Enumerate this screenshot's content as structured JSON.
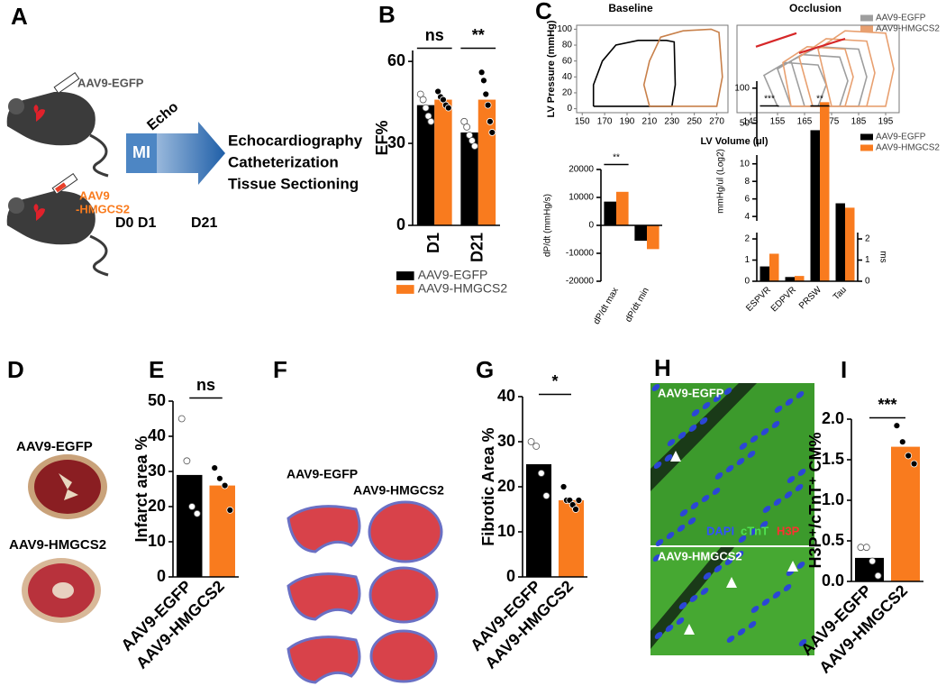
{
  "panel_labels": [
    "A",
    "B",
    "C",
    "D",
    "E",
    "F",
    "G",
    "H",
    "I"
  ],
  "schematic": {
    "mouse_1": "AAV9-EGFP",
    "mouse_2": [
      "AAV9",
      "-HMGCS2"
    ],
    "mi": "MI",
    "echo": "Echo",
    "days_start": "D0 D1",
    "day_end": "D21",
    "procedures": [
      "Echocardiography",
      "Catheterization",
      "Tissue Sectioning"
    ]
  },
  "images": {
    "D": [
      "AAV9-EGFP",
      "AAV9-HMGCS2"
    ],
    "F": [
      "AAV9-EGFP",
      "AAV9-HMGCS2"
    ],
    "H": {
      "top": "AAV9-EGFP",
      "bottom": "AAV9-HMGCS2",
      "stains": [
        "DAPI",
        "cTnT",
        "H3P"
      ]
    }
  },
  "chart_data": [
    {
      "type": "bar",
      "ylabel": "EF%",
      "categories": [
        "D1",
        "D21"
      ],
      "series": [
        {
          "name": "AAV9-EGFP",
          "color": "#000000",
          "values": [
            44,
            34
          ],
          "points": [
            [
              48,
              46,
              43,
              40,
              38
            ],
            [
              38,
              36,
              33,
              31,
              29
            ]
          ]
        },
        {
          "name": "AAV9-HMGCS2",
          "color": "#f97b1e",
          "values": [
            46,
            46
          ],
          "points": [
            [
              49,
              47,
              46,
              44,
              43
            ],
            [
              56,
              53,
              48,
              44,
              38,
              34
            ]
          ]
        }
      ],
      "ylim": [
        0,
        64
      ],
      "yticks": [
        0,
        30,
        60
      ],
      "annotations": [
        "ns",
        "**"
      ],
      "legend": "bottom"
    },
    {
      "type": "line",
      "title": "Baseline",
      "ylabel": "LV Pressure (mmHg)",
      "xlabel": "LV Volume (µl)",
      "series": [
        {
          "name": "AAV9-EGFP",
          "color": "#000000",
          "x": [
            160,
            230,
            233,
            232,
            225,
            200,
            180,
            168,
            160,
            160
          ],
          "y": [
            3,
            3,
            30,
            84,
            86,
            86,
            80,
            60,
            30,
            3
          ]
        },
        {
          "name": "AAV9-HMGCS2",
          "color": "#c8804a",
          "x": [
            210,
            270,
            275,
            272,
            265,
            240,
            220,
            210,
            205,
            210
          ],
          "y": [
            3,
            3,
            40,
            96,
            100,
            98,
            90,
            60,
            30,
            3
          ]
        }
      ],
      "xlim": [
        145,
        280
      ],
      "xticks": [
        150,
        170,
        190,
        210,
        230,
        250,
        270
      ],
      "ylim": [
        -5,
        105
      ],
      "yticks": [
        0,
        20,
        40,
        60,
        80,
        100
      ]
    },
    {
      "type": "line",
      "title": "Occlusion",
      "series": [
        {
          "name": "AAV9-EGFP",
          "color": "#9e9e9e",
          "x": [
            165,
            185,
            188,
            185,
            170,
            160,
            165,
            null,
            160,
            178,
            181,
            178,
            164,
            155,
            160,
            null,
            155,
            170,
            173,
            170,
            158,
            150,
            155
          ],
          "y": [
            3,
            3,
            40,
            75,
            78,
            60,
            3,
            null,
            3,
            3,
            35,
            65,
            68,
            50,
            3,
            null,
            3,
            3,
            30,
            55,
            58,
            42,
            3
          ]
        },
        {
          "name": "AAV9-HMGCS2",
          "color": "#e8a070",
          "x": [
            175,
            195,
            198,
            195,
            180,
            170,
            175,
            null,
            168,
            188,
            191,
            188,
            173,
            163,
            168,
            null,
            160,
            180,
            183,
            180,
            166,
            157,
            160
          ],
          "y": [
            3,
            3,
            50,
            95,
            98,
            75,
            3,
            null,
            3,
            3,
            45,
            85,
            88,
            65,
            3,
            null,
            3,
            3,
            40,
            75,
            78,
            58,
            3
          ]
        }
      ],
      "lines": [
        {
          "color": "#d62728",
          "x": [
            147,
            162
          ],
          "y": [
            78,
            95
          ]
        },
        {
          "color": "#d62728",
          "x": [
            163,
            180
          ],
          "y": [
            70,
            88
          ]
        }
      ],
      "xlim": [
        140,
        200
      ],
      "xticks": [
        145,
        155,
        165,
        175,
        185,
        195
      ],
      "ylim": [
        -5,
        105
      ],
      "legend": "upper right"
    },
    {
      "type": "bar",
      "ylabel": "dP/dt (mmHg/s)",
      "categories": [
        "dP/dt max",
        "dP/dt min"
      ],
      "series": [
        {
          "name": "AAV9-EGFP",
          "color": "#000000",
          "values": [
            8500,
            -5500
          ]
        },
        {
          "name": "AAV9-HMGCS2",
          "color": "#f97b1e",
          "values": [
            12000,
            -8500
          ]
        }
      ],
      "ylim": [
        -20000,
        20000
      ],
      "yticks": [
        -20000,
        -10000,
        0,
        10000,
        20000
      ],
      "annotations": [
        "**",
        null
      ]
    },
    {
      "type": "bar",
      "ylabel": "mmHg/ul (Log2)",
      "y2label": "ms",
      "categories": [
        "ESPVR",
        "EDPVR",
        "PRSW",
        "Tau"
      ],
      "series": [
        {
          "name": "AAV9-EGFP",
          "color": "#000000",
          "values": [
            0.7,
            0.2,
            40,
            5.5
          ]
        },
        {
          "name": "AAV9-HMGCS2",
          "color": "#f97b1e",
          "values": [
            1.3,
            0.25,
            80,
            5
          ]
        }
      ],
      "ylim": [
        0,
        110
      ],
      "ybreaks": [
        [
          0,
          2.3
        ],
        [
          3.5,
          11
        ],
        [
          20,
          110
        ]
      ],
      "yticks": [
        0,
        1,
        2,
        4,
        6,
        8,
        10,
        50,
        100
      ],
      "y2lim": [
        0,
        2.3
      ],
      "y2ticks": [
        0,
        1,
        2
      ],
      "annotations": [
        "***",
        null,
        "**",
        null
      ],
      "legend": "upper right"
    },
    {
      "type": "bar",
      "ylabel": "Infarct area %",
      "categories": [
        "AAV9-EGFP",
        "AAV9-HMGCS2"
      ],
      "values": [
        29,
        26
      ],
      "colors": [
        "#000000",
        "#f97b1e"
      ],
      "points": [
        [
          45,
          33,
          20,
          18
        ],
        [
          31,
          28,
          26,
          19
        ]
      ],
      "ylim": [
        0,
        50
      ],
      "yticks": [
        0,
        10,
        20,
        30,
        40,
        50
      ],
      "annotation": "ns"
    },
    {
      "type": "bar",
      "ylabel": "Fibrotic Area %",
      "categories": [
        "AAV9-EGFP",
        "AAV9-HMGCS2"
      ],
      "values": [
        25,
        17
      ],
      "colors": [
        "#000000",
        "#f97b1e"
      ],
      "points": [
        [
          30,
          29,
          23,
          18
        ],
        [
          20,
          17,
          17,
          16,
          15,
          17
        ]
      ],
      "ylim": [
        0,
        40
      ],
      "yticks": [
        0,
        10,
        20,
        30,
        40
      ],
      "annotation": "*"
    },
    {
      "type": "bar",
      "ylabel": "H3P⁺/cTnT⁺ CM%",
      "categories": [
        "AAV9-EGFP",
        "AAV9-HMGCS2"
      ],
      "values": [
        0.29,
        1.66
      ],
      "colors": [
        "#000000",
        "#f97b1e"
      ],
      "points": [
        [
          0.42,
          0.42,
          0.25,
          0.07
        ],
        [
          1.92,
          1.72,
          1.55,
          1.45
        ]
      ],
      "ylim": [
        0,
        2
      ],
      "yticks": [
        {
          "value": 0,
          "label": "0.0"
        },
        0.5,
        {
          "value": 1,
          "label": "1.0"
        },
        1.5,
        {
          "value": 2,
          "label": "2.0"
        }
      ],
      "annotation": "***"
    }
  ]
}
